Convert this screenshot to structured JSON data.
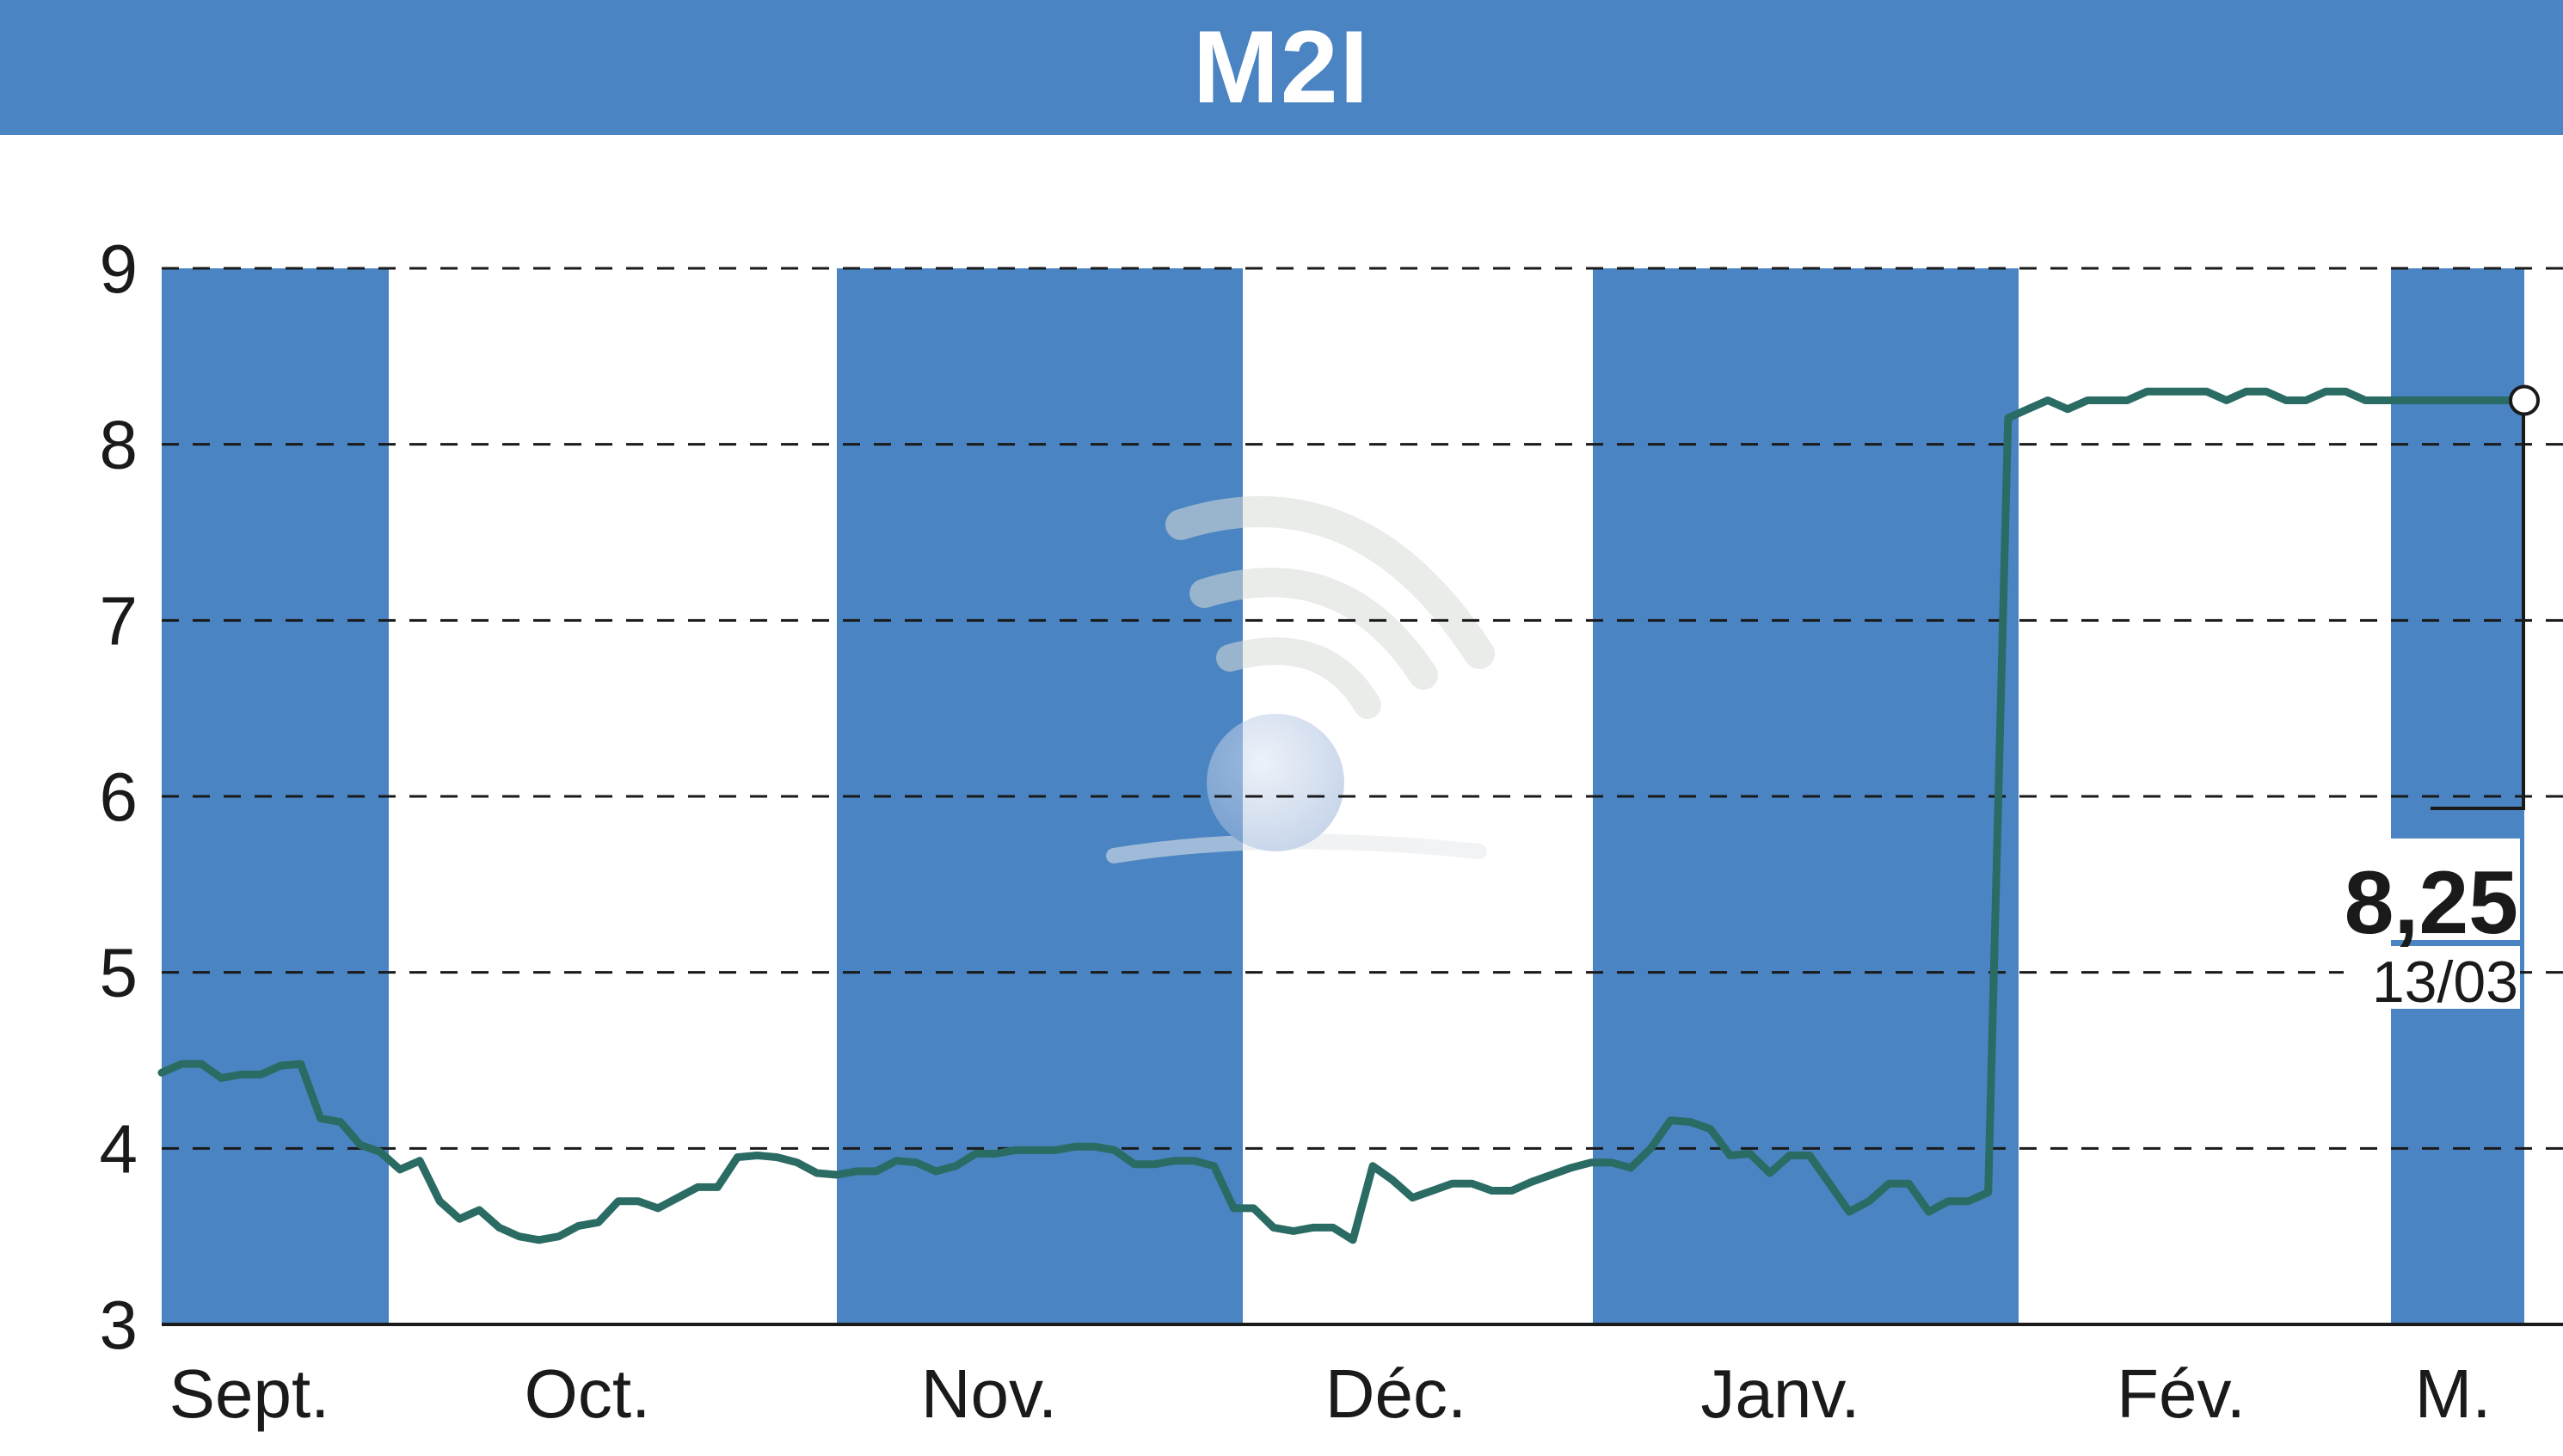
{
  "header": {
    "title": "M2I"
  },
  "colors": {
    "header_bg": "#4a84c2",
    "month_band": "#4a84c2",
    "line": "#2a6b63",
    "grid": "#1a1a1a",
    "text": "#1a1a1a"
  },
  "chart_data": {
    "type": "line",
    "title": "M2I",
    "ylim": [
      3,
      9
    ],
    "yticks": [
      "3",
      "4",
      "5",
      "6",
      "7",
      "8",
      "9"
    ],
    "grid": "horizontal dashed",
    "months": [
      "Sept.",
      "Oct.",
      "Nov.",
      "Déc.",
      "Janv.",
      "Fév.",
      "M."
    ],
    "shaded_months": [
      "Sept.",
      "Nov.",
      "Janv.",
      "M."
    ],
    "series": [
      {
        "points": [
          [
            0,
            4.43
          ],
          [
            1,
            4.48
          ],
          [
            2,
            4.48
          ],
          [
            3,
            4.4
          ],
          [
            4,
            4.42
          ],
          [
            5,
            4.42
          ],
          [
            6,
            4.47
          ],
          [
            7,
            4.48
          ],
          [
            8,
            4.17
          ],
          [
            9,
            4.15
          ],
          [
            10,
            4.02
          ],
          [
            11,
            3.98
          ],
          [
            12,
            3.88
          ],
          [
            13,
            3.93
          ],
          [
            14,
            3.7
          ],
          [
            15,
            3.6
          ],
          [
            16,
            3.65
          ],
          [
            17,
            3.55
          ],
          [
            18,
            3.5
          ],
          [
            19,
            3.48
          ],
          [
            20,
            3.5
          ],
          [
            21,
            3.56
          ],
          [
            22,
            3.58
          ],
          [
            23,
            3.7
          ],
          [
            24,
            3.7
          ],
          [
            25,
            3.66
          ],
          [
            26,
            3.72
          ],
          [
            27,
            3.78
          ],
          [
            28,
            3.78
          ],
          [
            29,
            3.95
          ],
          [
            30,
            3.96
          ],
          [
            31,
            3.95
          ],
          [
            32,
            3.92
          ],
          [
            33,
            3.86
          ],
          [
            34,
            3.85
          ],
          [
            35,
            3.87
          ],
          [
            36,
            3.87
          ],
          [
            37,
            3.93
          ],
          [
            38,
            3.92
          ],
          [
            39,
            3.87
          ],
          [
            40,
            3.9
          ],
          [
            41,
            3.97
          ],
          [
            42,
            3.97
          ],
          [
            43,
            3.99
          ],
          [
            44,
            3.99
          ],
          [
            45,
            3.99
          ],
          [
            46,
            4.01
          ],
          [
            47,
            4.01
          ],
          [
            48,
            3.99
          ],
          [
            49,
            3.91
          ],
          [
            50,
            3.91
          ],
          [
            51,
            3.93
          ],
          [
            52,
            3.93
          ],
          [
            53,
            3.9
          ],
          [
            54,
            3.66
          ],
          [
            55,
            3.66
          ],
          [
            56,
            3.55
          ],
          [
            57,
            3.53
          ],
          [
            58,
            3.55
          ],
          [
            59,
            3.55
          ],
          [
            60,
            3.48
          ],
          [
            61,
            3.9
          ],
          [
            62,
            3.82
          ],
          [
            63,
            3.72
          ],
          [
            64,
            3.76
          ],
          [
            65,
            3.8
          ],
          [
            66,
            3.8
          ],
          [
            67,
            3.76
          ],
          [
            68,
            3.76
          ],
          [
            69,
            3.81
          ],
          [
            70,
            3.85
          ],
          [
            71,
            3.89
          ],
          [
            72,
            3.92
          ],
          [
            73,
            3.92
          ],
          [
            74,
            3.89
          ],
          [
            75,
            4.0
          ],
          [
            76,
            4.16
          ],
          [
            77,
            4.15
          ],
          [
            78,
            4.11
          ],
          [
            79,
            3.96
          ],
          [
            80,
            3.97
          ],
          [
            81,
            3.86
          ],
          [
            82,
            3.96
          ],
          [
            83,
            3.96
          ],
          [
            84,
            3.8
          ],
          [
            85,
            3.64
          ],
          [
            86,
            3.7
          ],
          [
            87,
            3.8
          ],
          [
            88,
            3.8
          ],
          [
            89,
            3.64
          ],
          [
            90,
            3.7
          ],
          [
            91,
            3.7
          ],
          [
            92,
            3.75
          ],
          [
            93,
            8.15
          ],
          [
            94,
            8.2
          ],
          [
            95,
            8.25
          ],
          [
            96,
            8.2
          ],
          [
            97,
            8.25
          ],
          [
            98,
            8.25
          ],
          [
            99,
            8.25
          ],
          [
            100,
            8.3
          ],
          [
            101,
            8.3
          ],
          [
            102,
            8.3
          ],
          [
            103,
            8.3
          ],
          [
            104,
            8.25
          ],
          [
            105,
            8.3
          ],
          [
            106,
            8.3
          ],
          [
            107,
            8.25
          ],
          [
            108,
            8.25
          ],
          [
            109,
            8.3
          ],
          [
            110,
            8.3
          ],
          [
            111,
            8.25
          ],
          [
            112,
            8.25
          ],
          [
            113,
            8.25
          ],
          [
            114,
            8.25
          ],
          [
            115,
            8.25
          ],
          [
            116,
            8.25
          ],
          [
            117,
            8.25
          ],
          [
            118,
            8.25
          ],
          [
            119,
            8.25
          ]
        ]
      }
    ],
    "last_value": "8,25",
    "last_date": "13/03"
  }
}
